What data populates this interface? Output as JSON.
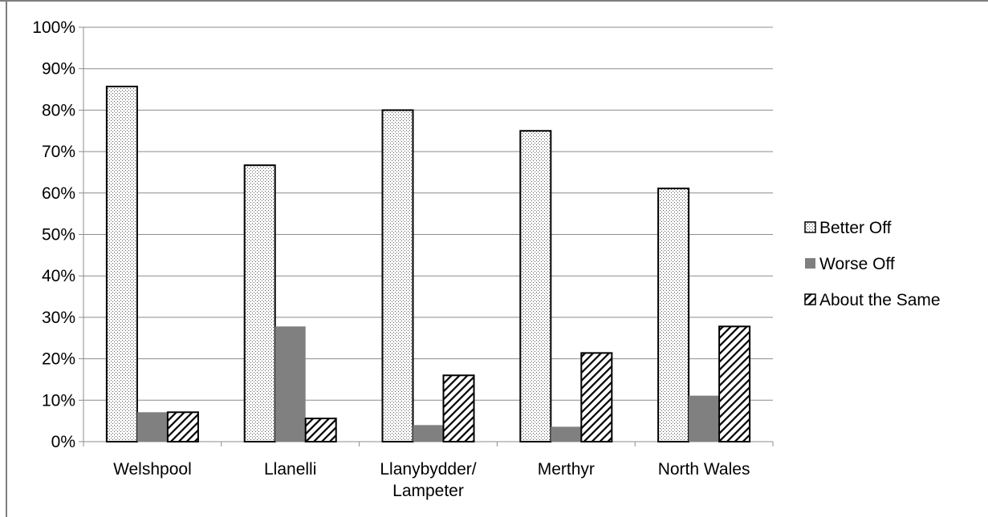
{
  "chart_data": {
    "type": "bar",
    "title": "",
    "xlabel": "",
    "ylabel": "",
    "ylim": [
      0,
      100
    ],
    "y_ticks": [
      "0%",
      "10%",
      "20%",
      "30%",
      "40%",
      "50%",
      "60%",
      "70%",
      "80%",
      "90%",
      "100%"
    ],
    "grid": true,
    "legend_position": "right",
    "categories": [
      [
        "Welshpool"
      ],
      [
        "Llanelli"
      ],
      [
        "Llanybydder/",
        "Lampeter"
      ],
      [
        "Merthyr"
      ],
      [
        "North Wales"
      ]
    ],
    "series": [
      {
        "name": "Better Off",
        "pattern": "dots",
        "values": [
          85.7,
          66.7,
          80.0,
          75.0,
          61.1
        ]
      },
      {
        "name": "Worse Off",
        "pattern": "solid",
        "values": [
          7.1,
          27.8,
          4.0,
          3.6,
          11.1
        ]
      },
      {
        "name": "About the Same",
        "pattern": "hatch",
        "values": [
          7.1,
          5.6,
          16.0,
          21.4,
          27.8
        ]
      }
    ],
    "colors": {
      "solid_fill": "#808080",
      "outline": "#000000",
      "gridline": "#8c8c8c",
      "frame": "#7f7f7f"
    }
  }
}
